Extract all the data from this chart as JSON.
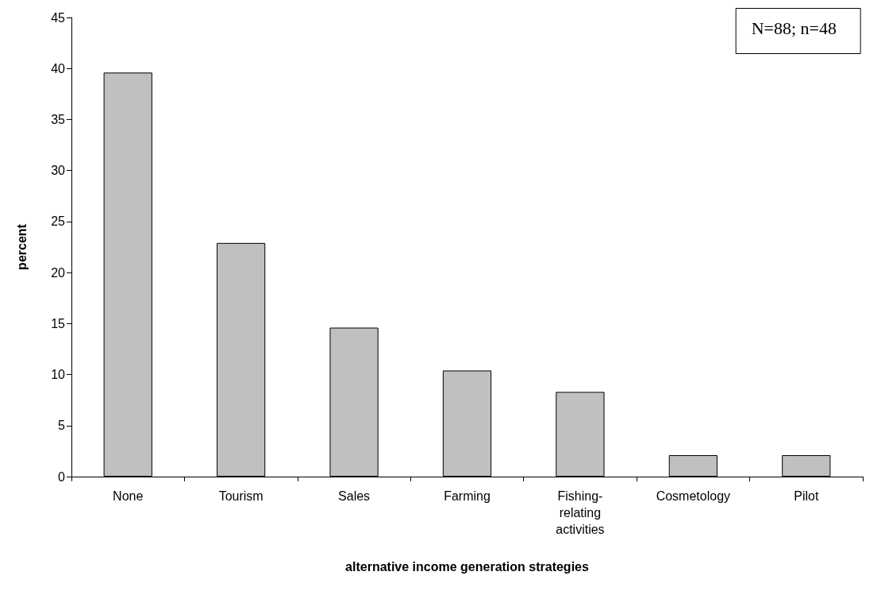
{
  "chart_data": {
    "type": "bar",
    "xlabel": "alternative income generation strategies",
    "ylabel": "percent",
    "categories": [
      "None",
      "Tourism",
      "Sales",
      "Farming",
      "Fishing-relating activities",
      "Cosmetology",
      "Pilot"
    ],
    "values": [
      39.6,
      22.9,
      14.6,
      10.4,
      8.3,
      2.1,
      2.1
    ],
    "color": "#c0c0c0",
    "ylim": [
      0,
      45
    ],
    "yticks": [
      0,
      5,
      10,
      15,
      20,
      25,
      30,
      35,
      40,
      45
    ],
    "grid": false,
    "annotations": [
      "N=88; n=48"
    ]
  }
}
